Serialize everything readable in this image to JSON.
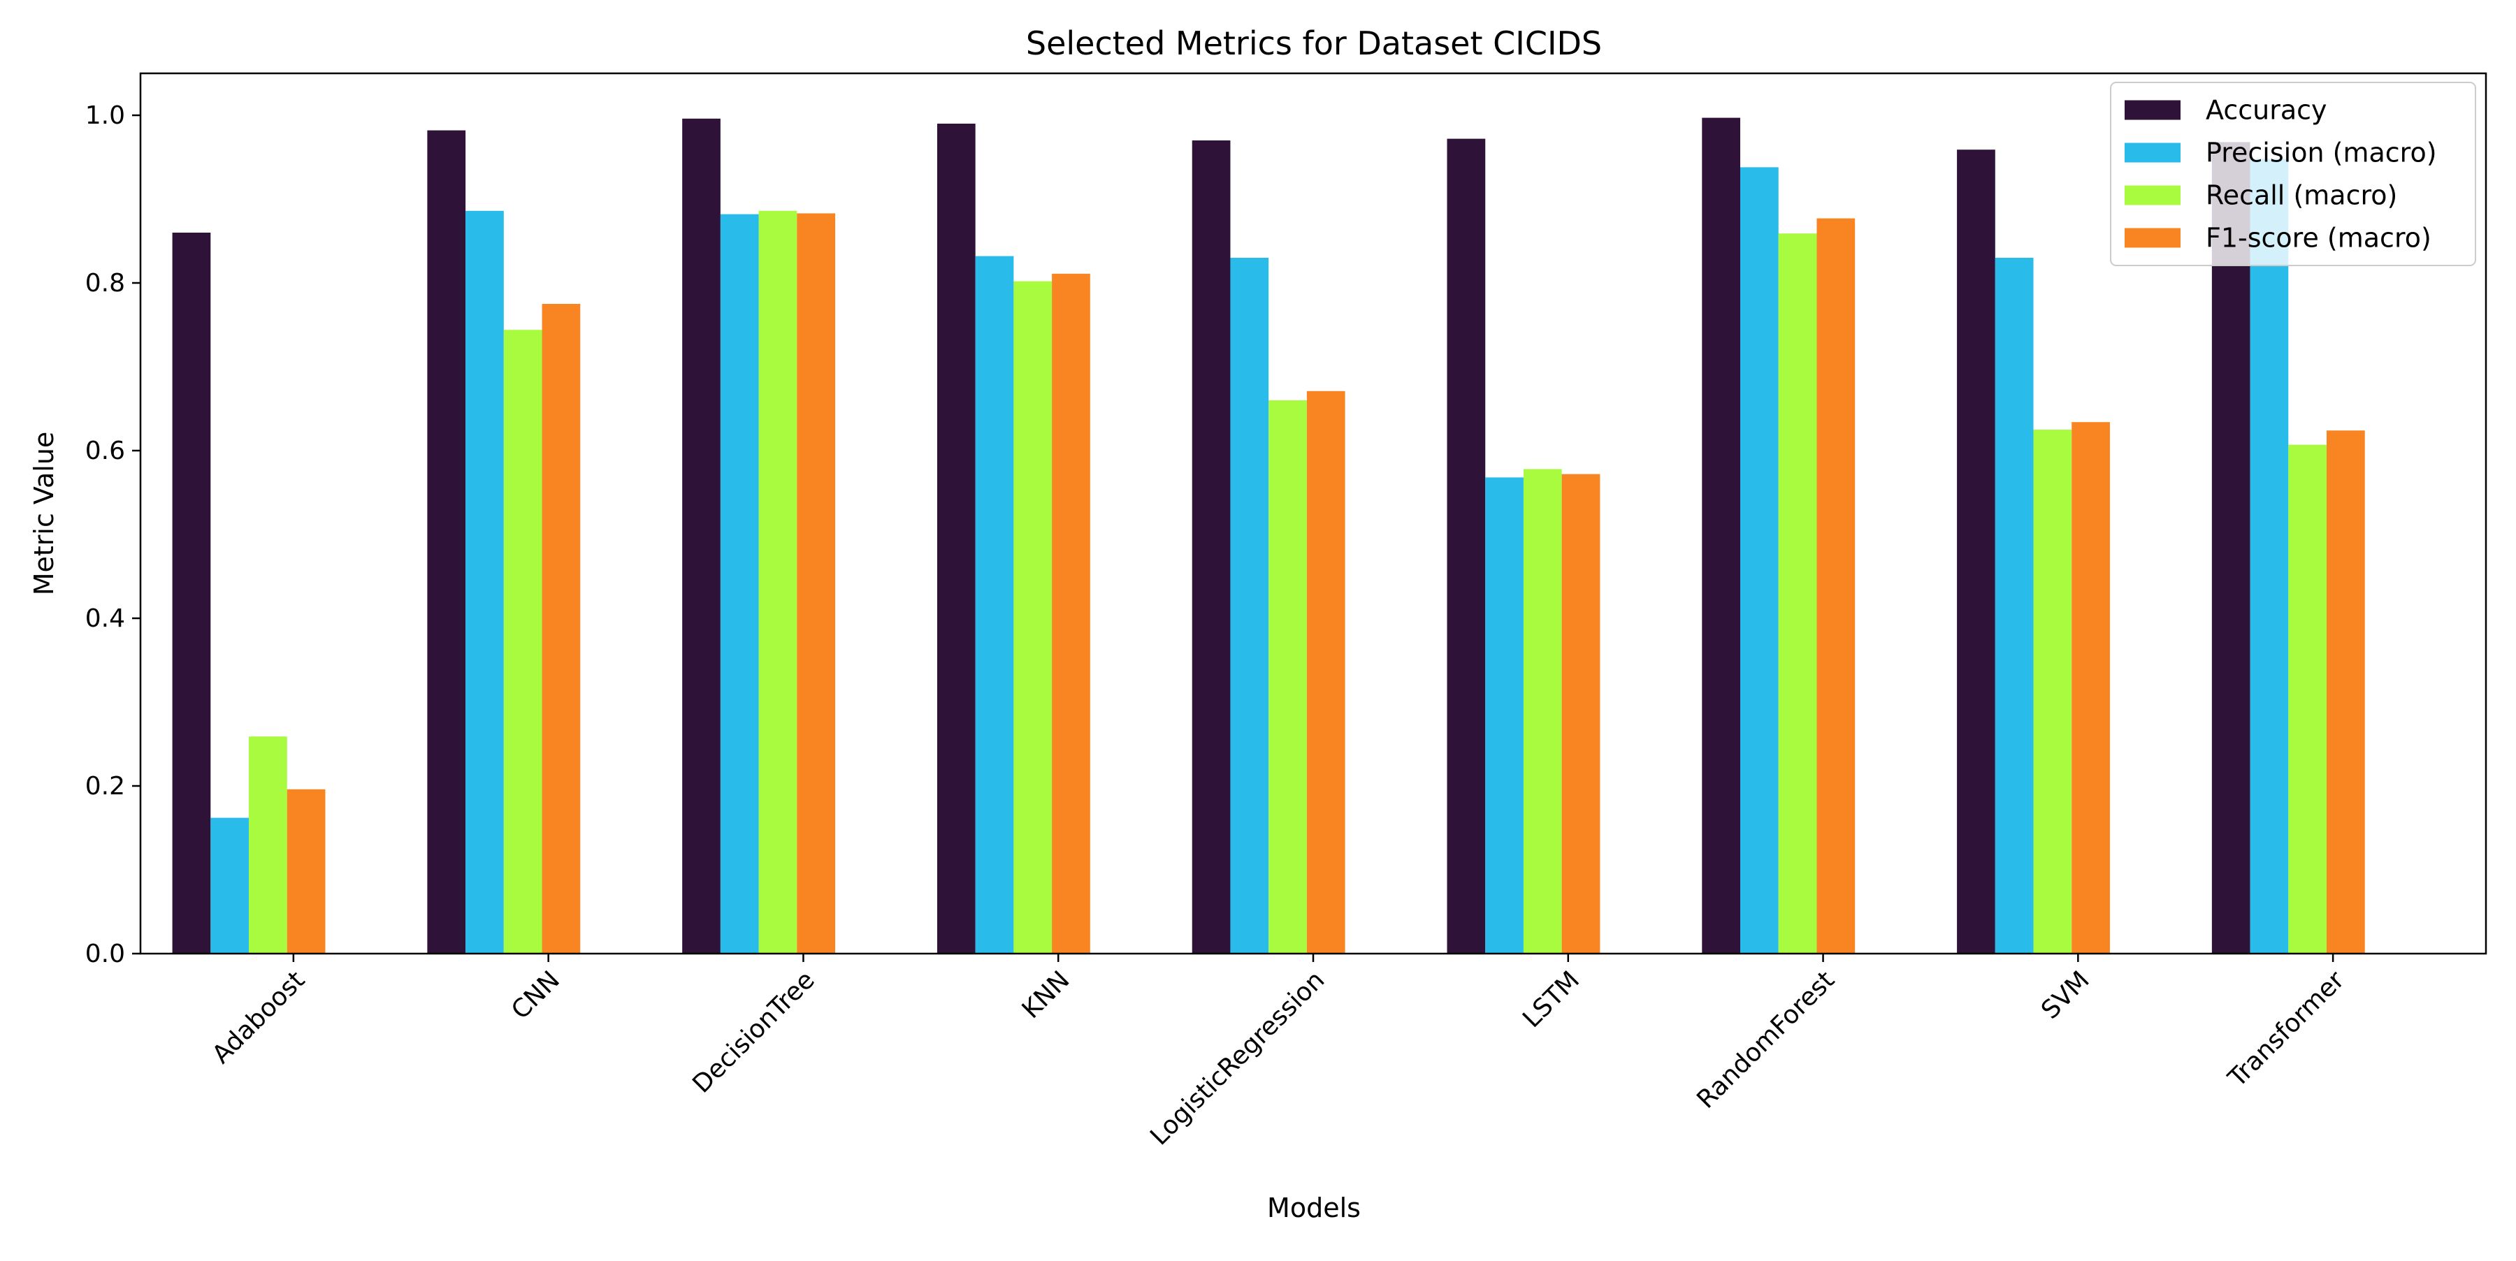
{
  "chart_data": {
    "type": "bar",
    "title": "Selected Metrics for Dataset CICIDS",
    "xlabel": "Models",
    "ylabel": "Metric Value",
    "ylim": [
      0,
      1.05
    ],
    "yticks": [
      "0.0",
      "0.2",
      "0.4",
      "0.6",
      "0.8",
      "1.0"
    ],
    "grid": false,
    "legend_position": "top-right",
    "categories": [
      "Adaboost",
      "CNN",
      "DecisionTree",
      "KNN",
      "LogisticRegression",
      "LSTM",
      "RandomForest",
      "SVM",
      "Transformer"
    ],
    "series": [
      {
        "name": "Accuracy",
        "color": "#2f1238",
        "values": [
          0.86,
          0.982,
          0.996,
          0.99,
          0.97,
          0.972,
          0.997,
          0.959,
          0.968
        ]
      },
      {
        "name": "Precision (macro)",
        "color": "#29bbe9",
        "values": [
          0.162,
          0.886,
          0.882,
          0.832,
          0.83,
          0.568,
          0.938,
          0.83,
          0.948
        ]
      },
      {
        "name": "Recall (macro)",
        "color": "#a8fb3f",
        "values": [
          0.259,
          0.744,
          0.886,
          0.802,
          0.66,
          0.578,
          0.859,
          0.625,
          0.607
        ]
      },
      {
        "name": "F1-score (macro)",
        "color": "#f98522",
        "values": [
          0.196,
          0.775,
          0.883,
          0.811,
          0.671,
          0.572,
          0.877,
          0.634,
          0.624
        ]
      }
    ]
  }
}
